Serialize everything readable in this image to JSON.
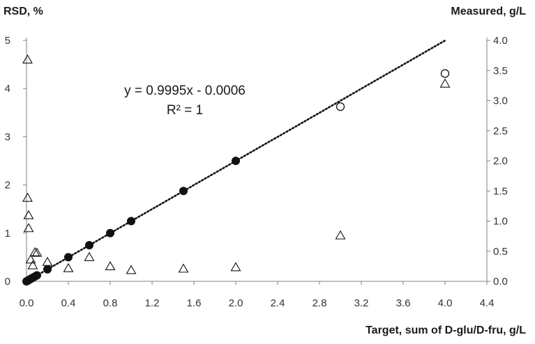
{
  "chart_data": {
    "type": "scatter",
    "xlabel": "Target, sum of D-glu/D-fru, g/L",
    "ylabel_left": "RSD, %",
    "ylabel_right": "Measured, g/L",
    "xlim": [
      0,
      4.4
    ],
    "xticks": [
      "0.0",
      "0.4",
      "0.8",
      "1.2",
      "1.6",
      "2.0",
      "2.4",
      "2.8",
      "3.2",
      "3.6",
      "4.0",
      "4.4"
    ],
    "ylim_left": [
      0,
      5
    ],
    "yticks_left": [
      "0",
      "1",
      "2",
      "3",
      "4",
      "5"
    ],
    "ylim_right": [
      0,
      4.0
    ],
    "yticks_right": [
      "0.0",
      "0.5",
      "1.0",
      "1.5",
      "2.0",
      "2.5",
      "3.0",
      "3.5",
      "4.0"
    ],
    "grid": false,
    "equation": "y = 0.9995x - 0.0006",
    "r_squared": "R² = 1",
    "series": [
      {
        "axis": "right",
        "marker": "filled-circle",
        "points": [
          [
            0.0,
            0.0
          ],
          [
            0.01,
            0.01
          ],
          [
            0.02,
            0.02
          ],
          [
            0.03,
            0.03
          ],
          [
            0.04,
            0.04
          ],
          [
            0.05,
            0.05
          ],
          [
            0.06,
            0.06
          ],
          [
            0.08,
            0.08
          ],
          [
            0.1,
            0.1
          ],
          [
            0.2,
            0.2
          ],
          [
            0.4,
            0.4
          ],
          [
            0.6,
            0.6
          ],
          [
            0.8,
            0.8
          ],
          [
            1.0,
            1.0
          ],
          [
            1.5,
            1.5
          ],
          [
            2.0,
            2.0
          ]
        ]
      },
      {
        "axis": "right",
        "marker": "open-circle",
        "points": [
          [
            3.0,
            2.9
          ],
          [
            4.0,
            3.45
          ]
        ]
      },
      {
        "axis": "left",
        "marker": "open-triangle",
        "points": [
          [
            0.01,
            4.6
          ],
          [
            0.01,
            1.73
          ],
          [
            0.02,
            1.37
          ],
          [
            0.02,
            1.1
          ],
          [
            0.04,
            0.45
          ],
          [
            0.06,
            0.33
          ],
          [
            0.08,
            0.6
          ],
          [
            0.1,
            0.59
          ],
          [
            0.2,
            0.4
          ],
          [
            0.4,
            0.27
          ],
          [
            0.6,
            0.5
          ],
          [
            0.8,
            0.31
          ],
          [
            1.0,
            0.23
          ],
          [
            1.5,
            0.26
          ],
          [
            2.0,
            0.29
          ],
          [
            3.0,
            0.95
          ],
          [
            4.0,
            4.1
          ]
        ]
      }
    ],
    "trendline": {
      "axis": "right",
      "slope": 0.9995,
      "intercept": -0.0006,
      "x_range": [
        0,
        4.0
      ]
    }
  }
}
